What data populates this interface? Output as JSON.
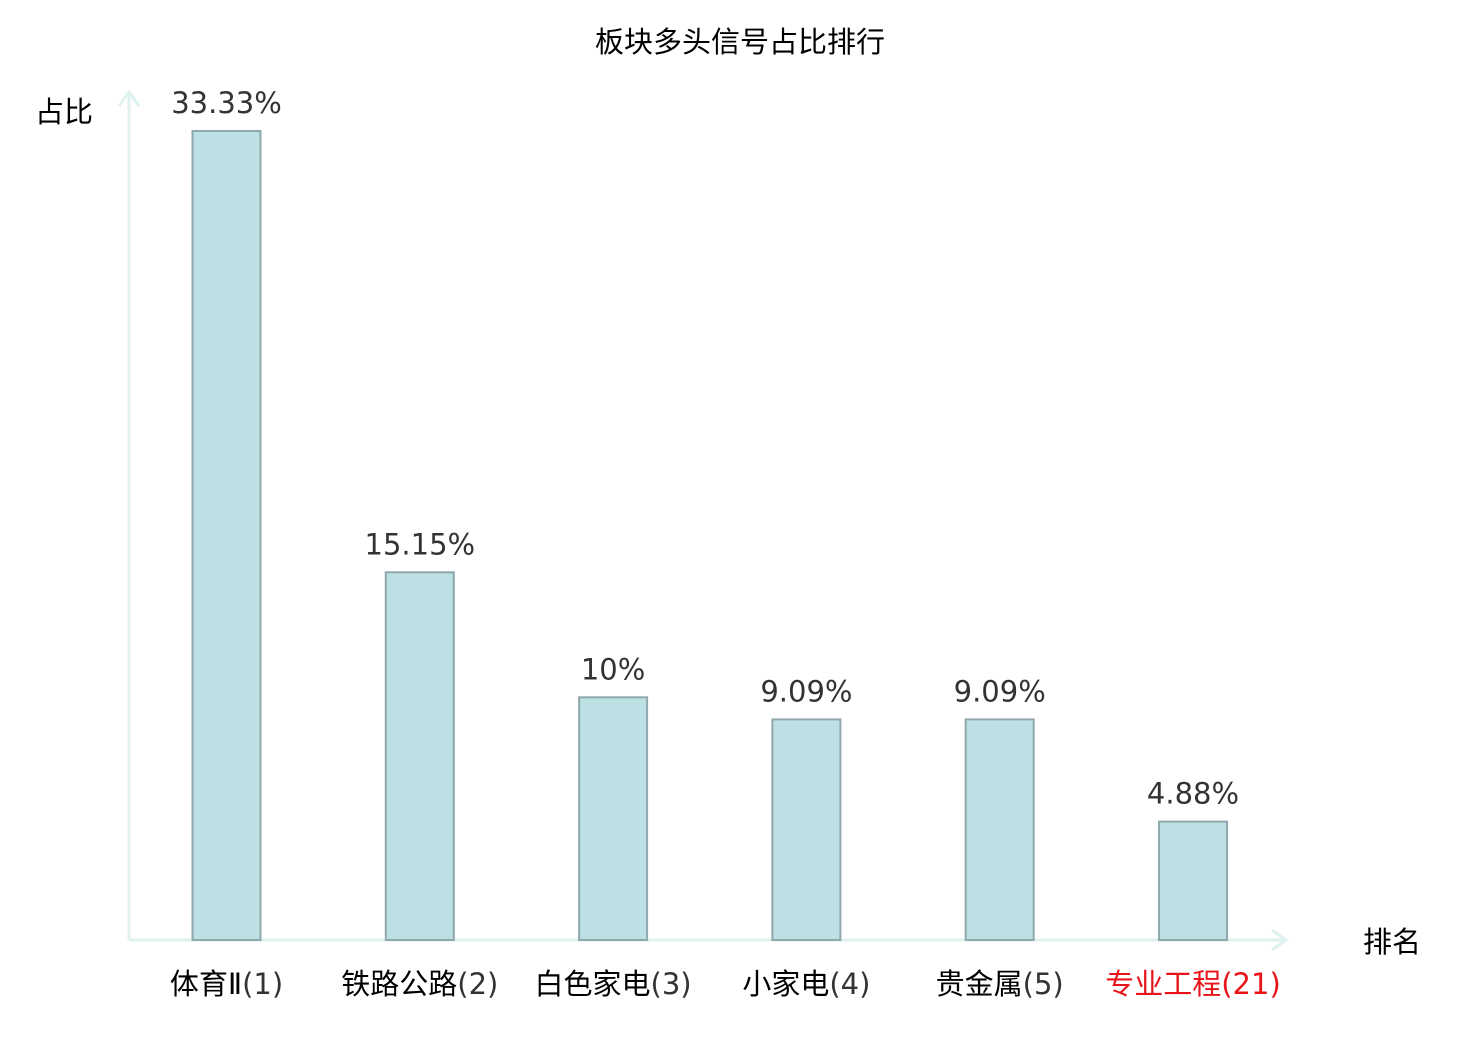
{
  "chart_data": {
    "type": "bar",
    "title": "板块多头信号占比排行",
    "ylabel": "占比",
    "xlabel": "排名",
    "categories": [
      {
        "name": "体育Ⅱ",
        "rank": "(1)",
        "highlight": false
      },
      {
        "name": "铁路公路",
        "rank": "(2)",
        "highlight": false
      },
      {
        "name": "白色家电",
        "rank": "(3)",
        "highlight": false
      },
      {
        "name": "小家电",
        "rank": "(4)",
        "highlight": false
      },
      {
        "name": "贵金属",
        "rank": "(5)",
        "highlight": false
      },
      {
        "name": "专业工程",
        "rank": "(21)",
        "highlight": true
      }
    ],
    "values": [
      33.33,
      15.15,
      10,
      9.09,
      9.09,
      4.88
    ],
    "value_labels": [
      "33.33%",
      "15.15%",
      "10%",
      "9.09%",
      "9.09%",
      "4.88%"
    ],
    "ylim": [
      0,
      33.33
    ],
    "grid": false,
    "colors": {
      "bar_fill": "#bce0e3",
      "bar_stroke": "#8fa8ac",
      "axis": "#e0f2ef",
      "text": "#000000",
      "value_text": "#333333",
      "rank_text": "#333333",
      "highlight": "#e8141a"
    }
  }
}
